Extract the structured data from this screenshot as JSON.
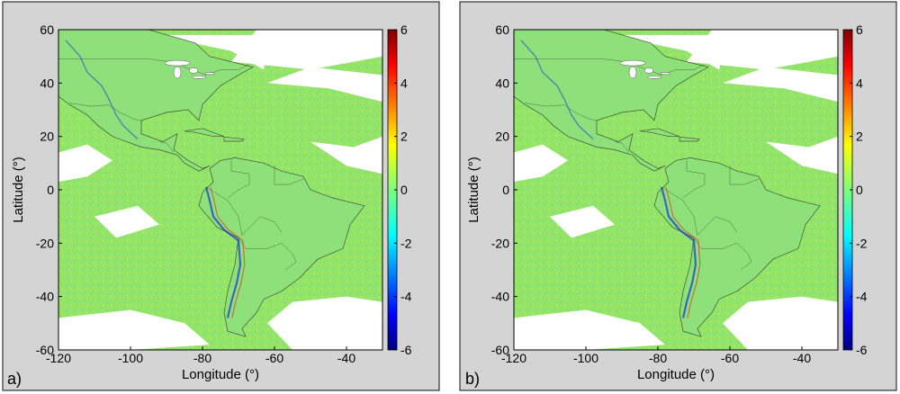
{
  "chart_data": [
    {
      "panel_label": "a)",
      "type": "heatmap",
      "xlabel": "Longitude (°)",
      "ylabel": "Latitude (°)",
      "xlim": [
        -120,
        -30
      ],
      "ylim": [
        -60,
        60
      ],
      "x_ticks": [
        -120,
        -100,
        -80,
        -60,
        -40
      ],
      "y_ticks": [
        60,
        40,
        20,
        0,
        -20,
        -40,
        -60
      ],
      "colorbar": {
        "range": [
          -6,
          6
        ],
        "ticks": [
          6,
          4,
          2,
          0,
          -2,
          -4,
          -6
        ],
        "colormap": "jet"
      },
      "map_region": "Americas, land and ocean coverage",
      "grid": false
    },
    {
      "panel_label": "b)",
      "type": "heatmap",
      "xlabel": "Longitude (°)",
      "ylabel": "Latitude (°)",
      "xlim": [
        -120,
        -30
      ],
      "ylim": [
        -60,
        60
      ],
      "x_ticks": [
        -120,
        -100,
        -80,
        -60,
        -40
      ],
      "y_ticks": [
        60,
        40,
        20,
        0,
        -20,
        -40,
        -60
      ],
      "colorbar": {
        "range": [
          -6,
          6
        ],
        "ticks": [
          6,
          4,
          2,
          0,
          -2,
          -4,
          -6
        ],
        "colormap": "jet"
      },
      "map_region": "Americas, land and ocean coverage",
      "grid": false
    }
  ],
  "colors": {
    "panel_background": "#d4d4d4",
    "map_fill": "#94e468",
    "no_data": "#ffffff",
    "border": "#333333"
  }
}
